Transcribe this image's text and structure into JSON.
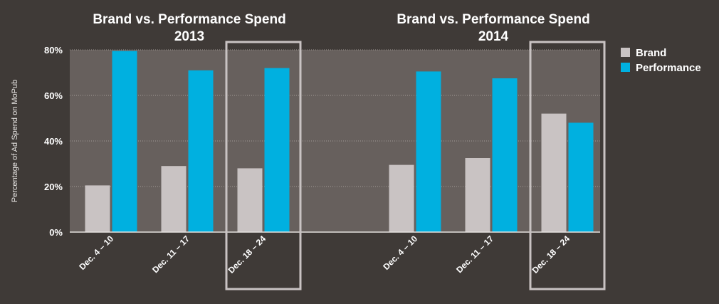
{
  "chart_data": {
    "type": "bar",
    "ylabel": "Percentage of Ad Spend on MoPub",
    "ylim": [
      0,
      80
    ],
    "y_ticks": [
      "0%",
      "20%",
      "40%",
      "60%",
      "80%"
    ],
    "grid": true,
    "legend": {
      "placement": "top-right",
      "entries": [
        "Brand",
        "Performance"
      ]
    },
    "colors": {
      "brand": "#c9c3c3",
      "performance": "#00b0e0",
      "plot_bg": "#67605d",
      "page_bg": "#3f3a37",
      "highlight_box": "#c9c3c3"
    },
    "panels": [
      {
        "title_line1": "Brand vs. Performance Spend",
        "title_line2": "2013",
        "categories": [
          "Dec. 4 – 10",
          "Dec. 11 – 17",
          "Dec. 18 – 24"
        ],
        "series": [
          {
            "name": "Brand",
            "values": [
              20.5,
              29,
              28
            ]
          },
          {
            "name": "Performance",
            "values": [
              79.5,
              71,
              72
            ]
          }
        ],
        "highlighted_category": "Dec. 18 – 24"
      },
      {
        "title_line1": "Brand vs. Performance Spend",
        "title_line2": "2014",
        "categories": [
          "Dec. 4 – 10",
          "Dec. 11 – 17",
          "Dec. 18 – 24"
        ],
        "series": [
          {
            "name": "Brand",
            "values": [
              29.5,
              32.5,
              52
            ]
          },
          {
            "name": "Performance",
            "values": [
              70.5,
              67.5,
              48
            ]
          }
        ],
        "highlighted_category": "Dec. 18 – 24"
      }
    ]
  }
}
